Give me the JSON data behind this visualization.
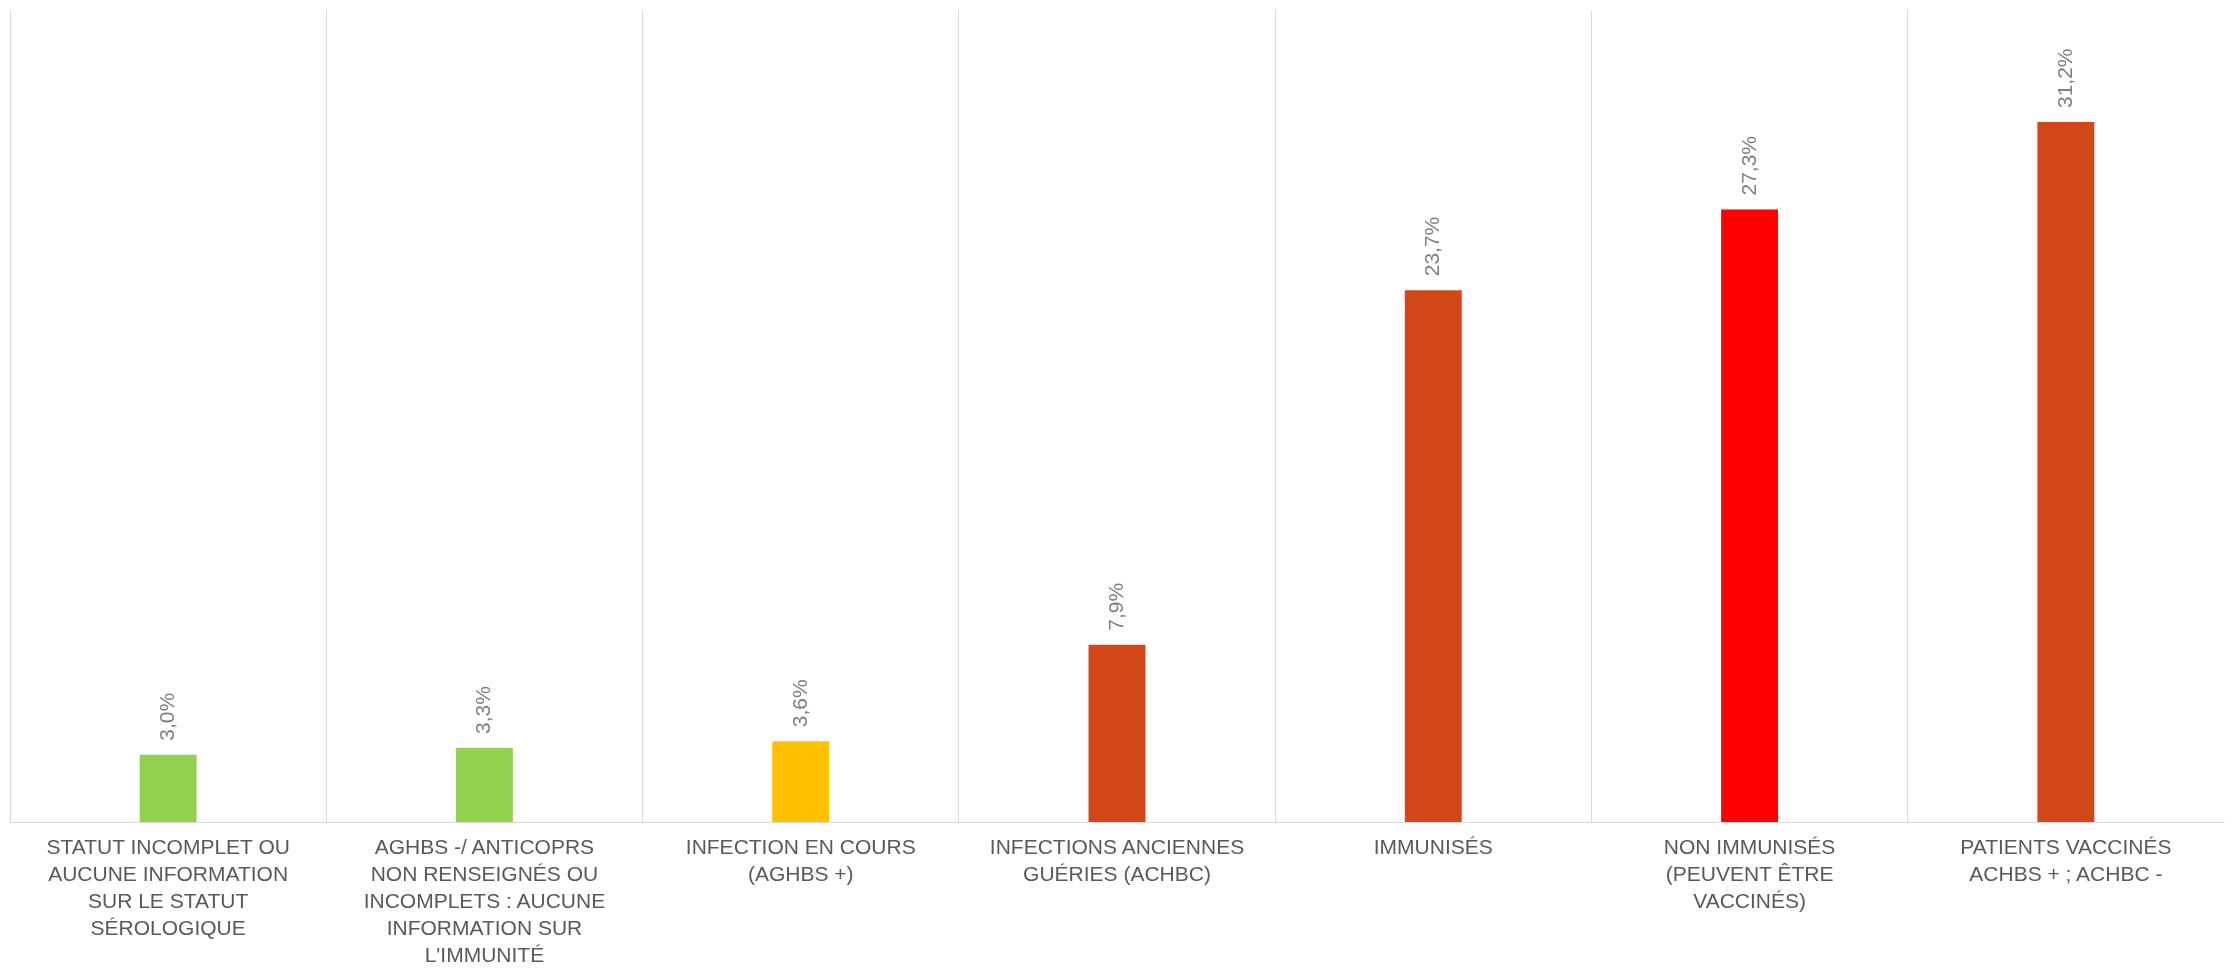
{
  "chart_data": {
    "type": "bar",
    "categories": [
      "STATUT INCOMPLET OU AUCUNE INFORMATION SUR LE STATUT SÉROLOGIQUE",
      "AGHBS -/ ANTICOPRS NON RENSEIGNÉS OU INCOMPLETS : AUCUNE INFORMATION SUR L'IMMUNITÉ",
      "INFECTION EN COURS (AGHBS +)",
      "INFECTIONS ANCIENNES GUÉRIES (ACHBC)",
      "IMMUNISÉS",
      "NON IMMUNISÉS (PEUVENT ÊTRE VACCINÉS)",
      "PATIENTS VACCINÉS ACHBS + ; ACHBC -"
    ],
    "values": [
      3.0,
      3.3,
      3.6,
      7.9,
      23.7,
      27.3,
      31.2
    ],
    "value_labels": [
      "3,0%",
      "3,3%",
      "3,6%",
      "7,9%",
      "23,7%",
      "27,3%",
      "31,2%"
    ],
    "colors": [
      "#92d050",
      "#92d050",
      "#ffc000",
      "#d24718",
      "#d24718",
      "#ff0000",
      "#d24718"
    ],
    "grid": "x"
  }
}
